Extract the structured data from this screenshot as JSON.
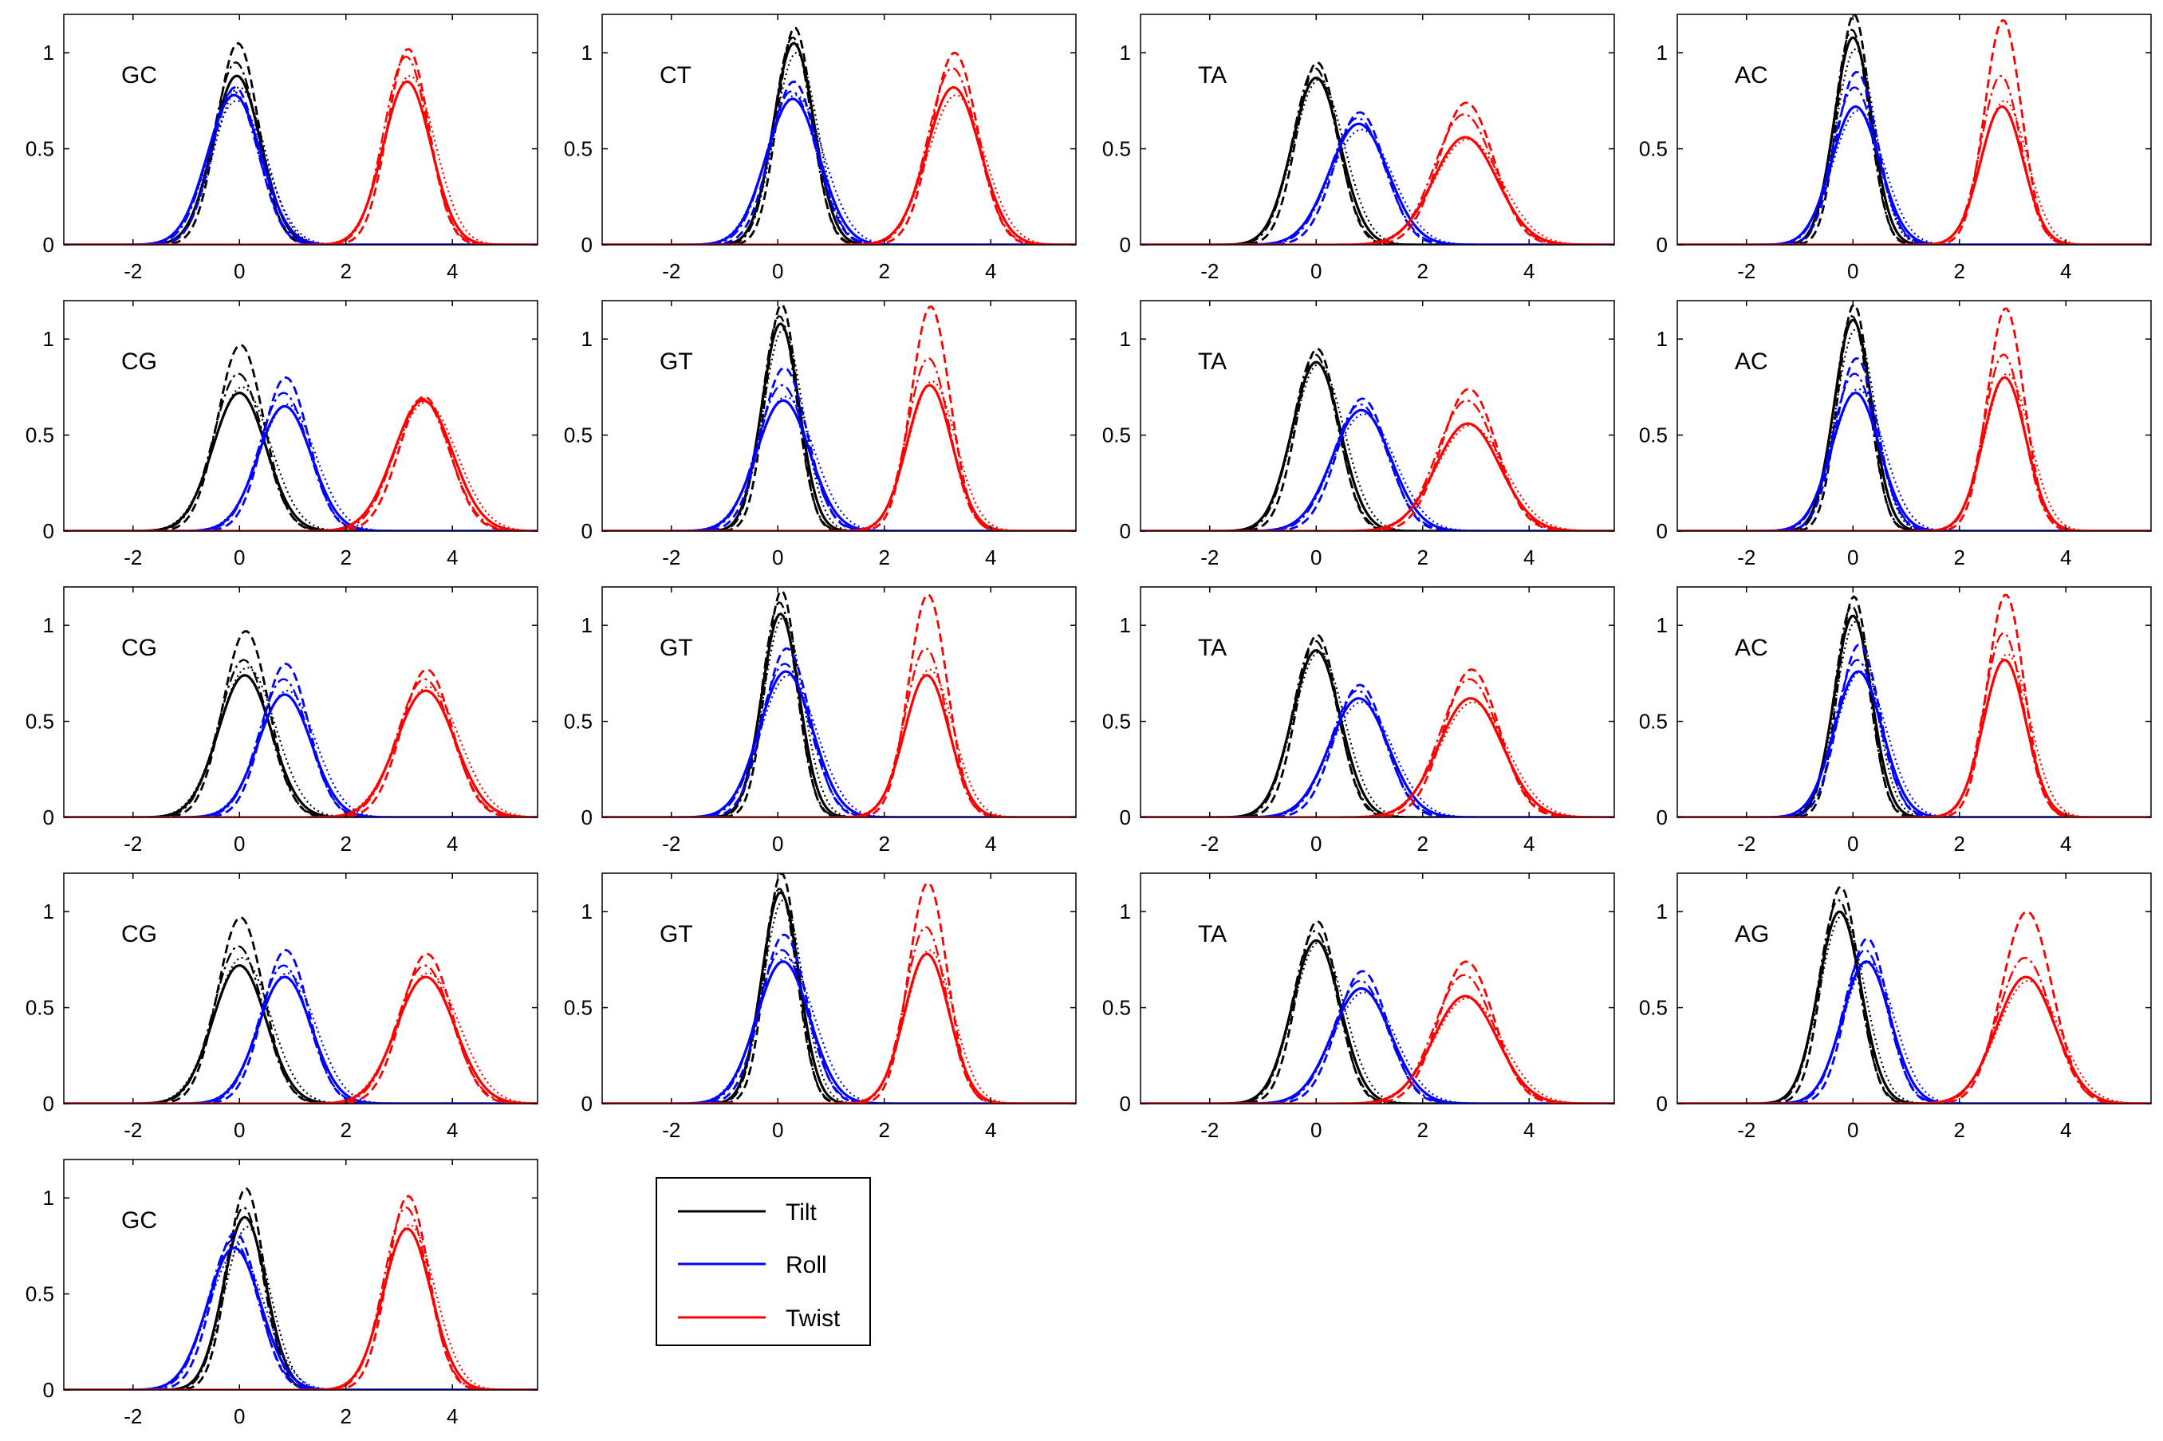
{
  "legend": {
    "entries": [
      {
        "label": "Tilt",
        "color": "#000000"
      },
      {
        "label": "Roll",
        "color": "#0000ff"
      },
      {
        "label": "Twist",
        "color": "#ff0000"
      }
    ]
  },
  "chart_data": [
    {
      "type": "line",
      "label": "GC",
      "xlim": [
        -3.3,
        5.6
      ],
      "ylim": [
        0,
        1.2
      ],
      "xticks": [
        -2,
        0,
        2,
        4
      ],
      "yticks": [
        0,
        0.5,
        1
      ],
      "grid": false,
      "series": [
        {
          "name": "Tilt",
          "mu": -0.05,
          "sd": 0.45,
          "peaks": [
            0.88,
            1.05,
            0.95,
            0.82
          ]
        },
        {
          "name": "Roll",
          "mu": -0.1,
          "sd": 0.5,
          "peaks": [
            0.78,
            0.82,
            0.8,
            0.75
          ]
        },
        {
          "name": "Twist",
          "mu": 3.15,
          "sd": 0.45,
          "peaks": [
            0.85,
            1.02,
            0.98,
            0.88
          ]
        }
      ]
    },
    {
      "type": "line",
      "label": "CT",
      "xlim": [
        -3.3,
        5.6
      ],
      "ylim": [
        0,
        1.2
      ],
      "xticks": [
        -2,
        0,
        2,
        4
      ],
      "yticks": [
        0,
        0.5,
        1
      ],
      "grid": false,
      "series": [
        {
          "name": "Tilt",
          "mu": 0.3,
          "sd": 0.38,
          "peaks": [
            1.05,
            1.13,
            1.08,
            1.0
          ]
        },
        {
          "name": "Roll",
          "mu": 0.28,
          "sd": 0.5,
          "peaks": [
            0.76,
            0.85,
            0.8,
            0.78
          ]
        },
        {
          "name": "Twist",
          "mu": 3.3,
          "sd": 0.5,
          "peaks": [
            0.82,
            1.0,
            0.92,
            0.78
          ]
        }
      ]
    },
    {
      "type": "line",
      "label": "TA",
      "xlim": [
        -3.3,
        5.6
      ],
      "ylim": [
        0,
        1.2
      ],
      "xticks": [
        -2,
        0,
        2,
        4
      ],
      "yticks": [
        0,
        0.5,
        1
      ],
      "grid": false,
      "series": [
        {
          "name": "Tilt",
          "mu": 0.0,
          "sd": 0.45,
          "peaks": [
            0.87,
            0.95,
            0.92,
            0.86
          ]
        },
        {
          "name": "Roll",
          "mu": 0.8,
          "sd": 0.55,
          "peaks": [
            0.63,
            0.69,
            0.66,
            0.6
          ]
        },
        {
          "name": "Twist",
          "mu": 2.8,
          "sd": 0.6,
          "peaks": [
            0.56,
            0.74,
            0.68,
            0.55
          ]
        }
      ]
    },
    {
      "type": "line",
      "label": "AC",
      "xlim": [
        -3.3,
        5.6
      ],
      "ylim": [
        0,
        1.2
      ],
      "xticks": [
        -2,
        0,
        2,
        4
      ],
      "yticks": [
        0,
        0.5,
        1
      ],
      "grid": false,
      "series": [
        {
          "name": "Tilt",
          "mu": 0.0,
          "sd": 0.35,
          "peaks": [
            1.08,
            1.2,
            1.12,
            1.02
          ]
        },
        {
          "name": "Roll",
          "mu": 0.05,
          "sd": 0.45,
          "peaks": [
            0.72,
            0.9,
            0.82,
            0.7
          ]
        },
        {
          "name": "Twist",
          "mu": 2.8,
          "sd": 0.4,
          "peaks": [
            0.72,
            1.17,
            0.88,
            0.75
          ]
        }
      ]
    },
    {
      "type": "line",
      "label": "CG",
      "xlim": [
        -3.3,
        5.6
      ],
      "ylim": [
        0,
        1.2
      ],
      "xticks": [
        -2,
        0,
        2,
        4
      ],
      "yticks": [
        0,
        0.5,
        1
      ],
      "grid": false,
      "series": [
        {
          "name": "Tilt",
          "mu": 0.0,
          "sd": 0.5,
          "peaks": [
            0.72,
            0.97,
            0.82,
            0.75
          ]
        },
        {
          "name": "Roll",
          "mu": 0.85,
          "sd": 0.5,
          "peaks": [
            0.65,
            0.8,
            0.72,
            0.66
          ]
        },
        {
          "name": "Twist",
          "mu": 3.45,
          "sd": 0.55,
          "peaks": [
            0.68,
            0.7,
            0.69,
            0.67
          ]
        }
      ]
    },
    {
      "type": "line",
      "label": "GT",
      "xlim": [
        -3.3,
        5.6
      ],
      "ylim": [
        0,
        1.2
      ],
      "xticks": [
        -2,
        0,
        2,
        4
      ],
      "yticks": [
        0,
        0.5,
        1
      ],
      "grid": false,
      "series": [
        {
          "name": "Tilt",
          "mu": 0.05,
          "sd": 0.35,
          "peaks": [
            1.08,
            1.18,
            1.12,
            1.05
          ]
        },
        {
          "name": "Roll",
          "mu": 0.1,
          "sd": 0.5,
          "peaks": [
            0.68,
            0.85,
            0.76,
            0.7
          ]
        },
        {
          "name": "Twist",
          "mu": 2.85,
          "sd": 0.42,
          "peaks": [
            0.76,
            1.17,
            0.9,
            0.78
          ]
        }
      ]
    },
    {
      "type": "line",
      "label": "TA",
      "xlim": [
        -3.3,
        5.6
      ],
      "ylim": [
        0,
        1.2
      ],
      "xticks": [
        -2,
        0,
        2,
        4
      ],
      "yticks": [
        0,
        0.5,
        1
      ],
      "grid": false,
      "series": [
        {
          "name": "Tilt",
          "mu": 0.0,
          "sd": 0.45,
          "peaks": [
            0.88,
            0.95,
            0.92,
            0.87
          ]
        },
        {
          "name": "Roll",
          "mu": 0.85,
          "sd": 0.55,
          "peaks": [
            0.63,
            0.69,
            0.66,
            0.61
          ]
        },
        {
          "name": "Twist",
          "mu": 2.85,
          "sd": 0.6,
          "peaks": [
            0.56,
            0.74,
            0.68,
            0.55
          ]
        }
      ]
    },
    {
      "type": "line",
      "label": "AC",
      "xlim": [
        -3.3,
        5.6
      ],
      "ylim": [
        0,
        1.2
      ],
      "xticks": [
        -2,
        0,
        2,
        4
      ],
      "yticks": [
        0,
        0.5,
        1
      ],
      "grid": false,
      "series": [
        {
          "name": "Tilt",
          "mu": 0.0,
          "sd": 0.35,
          "peaks": [
            1.1,
            1.18,
            1.12,
            1.05
          ]
        },
        {
          "name": "Roll",
          "mu": 0.05,
          "sd": 0.45,
          "peaks": [
            0.72,
            0.9,
            0.82,
            0.74
          ]
        },
        {
          "name": "Twist",
          "mu": 2.85,
          "sd": 0.4,
          "peaks": [
            0.8,
            1.16,
            0.92,
            0.82
          ]
        }
      ]
    },
    {
      "type": "line",
      "label": "CG",
      "xlim": [
        -3.3,
        5.6
      ],
      "ylim": [
        0,
        1.2
      ],
      "xticks": [
        -2,
        0,
        2,
        4
      ],
      "yticks": [
        0,
        0.5,
        1
      ],
      "grid": false,
      "series": [
        {
          "name": "Tilt",
          "mu": 0.1,
          "sd": 0.5,
          "peaks": [
            0.74,
            0.97,
            0.82,
            0.78
          ]
        },
        {
          "name": "Roll",
          "mu": 0.85,
          "sd": 0.5,
          "peaks": [
            0.64,
            0.8,
            0.72,
            0.66
          ]
        },
        {
          "name": "Twist",
          "mu": 3.5,
          "sd": 0.55,
          "peaks": [
            0.66,
            0.77,
            0.72,
            0.68
          ]
        }
      ]
    },
    {
      "type": "line",
      "label": "GT",
      "xlim": [
        -3.3,
        5.6
      ],
      "ylim": [
        0,
        1.2
      ],
      "xticks": [
        -2,
        0,
        2,
        4
      ],
      "yticks": [
        0,
        0.5,
        1
      ],
      "grid": false,
      "series": [
        {
          "name": "Tilt",
          "mu": 0.05,
          "sd": 0.35,
          "peaks": [
            1.06,
            1.18,
            1.12,
            1.04
          ]
        },
        {
          "name": "Roll",
          "mu": 0.15,
          "sd": 0.5,
          "peaks": [
            0.76,
            0.88,
            0.8,
            0.74
          ]
        },
        {
          "name": "Twist",
          "mu": 2.8,
          "sd": 0.42,
          "peaks": [
            0.74,
            1.16,
            0.88,
            0.77
          ]
        }
      ]
    },
    {
      "type": "line",
      "label": "TA",
      "xlim": [
        -3.3,
        5.6
      ],
      "ylim": [
        0,
        1.2
      ],
      "xticks": [
        -2,
        0,
        2,
        4
      ],
      "yticks": [
        0,
        0.5,
        1
      ],
      "grid": false,
      "series": [
        {
          "name": "Tilt",
          "mu": 0.0,
          "sd": 0.45,
          "peaks": [
            0.87,
            0.95,
            0.92,
            0.86
          ]
        },
        {
          "name": "Roll",
          "mu": 0.8,
          "sd": 0.55,
          "peaks": [
            0.62,
            0.69,
            0.66,
            0.6
          ]
        },
        {
          "name": "Twist",
          "mu": 2.9,
          "sd": 0.6,
          "peaks": [
            0.62,
            0.77,
            0.72,
            0.6
          ]
        }
      ]
    },
    {
      "type": "line",
      "label": "AC",
      "xlim": [
        -3.3,
        5.6
      ],
      "ylim": [
        0,
        1.2
      ],
      "xticks": [
        -2,
        0,
        2,
        4
      ],
      "yticks": [
        0,
        0.5,
        1
      ],
      "grid": false,
      "series": [
        {
          "name": "Tilt",
          "mu": 0.0,
          "sd": 0.35,
          "peaks": [
            1.05,
            1.15,
            1.1,
            1.02
          ]
        },
        {
          "name": "Roll",
          "mu": 0.1,
          "sd": 0.45,
          "peaks": [
            0.76,
            0.9,
            0.82,
            0.76
          ]
        },
        {
          "name": "Twist",
          "mu": 2.85,
          "sd": 0.4,
          "peaks": [
            0.82,
            1.16,
            0.96,
            0.85
          ]
        }
      ]
    },
    {
      "type": "line",
      "label": "CG",
      "xlim": [
        -3.3,
        5.6
      ],
      "ylim": [
        0,
        1.2
      ],
      "xticks": [
        -2,
        0,
        2,
        4
      ],
      "yticks": [
        0,
        0.5,
        1
      ],
      "grid": false,
      "series": [
        {
          "name": "Tilt",
          "mu": 0.0,
          "sd": 0.5,
          "peaks": [
            0.72,
            0.97,
            0.82,
            0.76
          ]
        },
        {
          "name": "Roll",
          "mu": 0.85,
          "sd": 0.5,
          "peaks": [
            0.66,
            0.8,
            0.72,
            0.68
          ]
        },
        {
          "name": "Twist",
          "mu": 3.5,
          "sd": 0.55,
          "peaks": [
            0.66,
            0.78,
            0.72,
            0.68
          ]
        }
      ]
    },
    {
      "type": "line",
      "label": "GT",
      "xlim": [
        -3.3,
        5.6
      ],
      "ylim": [
        0,
        1.2
      ],
      "xticks": [
        -2,
        0,
        2,
        4
      ],
      "yticks": [
        0,
        0.5,
        1
      ],
      "grid": false,
      "series": [
        {
          "name": "Tilt",
          "mu": 0.05,
          "sd": 0.35,
          "peaks": [
            1.1,
            1.2,
            1.12,
            1.06
          ]
        },
        {
          "name": "Roll",
          "mu": 0.1,
          "sd": 0.5,
          "peaks": [
            0.74,
            0.88,
            0.8,
            0.76
          ]
        },
        {
          "name": "Twist",
          "mu": 2.8,
          "sd": 0.42,
          "peaks": [
            0.78,
            1.15,
            0.92,
            0.8
          ]
        }
      ]
    },
    {
      "type": "line",
      "label": "TA",
      "xlim": [
        -3.3,
        5.6
      ],
      "ylim": [
        0,
        1.2
      ],
      "xticks": [
        -2,
        0,
        2,
        4
      ],
      "yticks": [
        0,
        0.5,
        1
      ],
      "grid": false,
      "series": [
        {
          "name": "Tilt",
          "mu": 0.0,
          "sd": 0.45,
          "peaks": [
            0.85,
            0.95,
            0.9,
            0.84
          ]
        },
        {
          "name": "Roll",
          "mu": 0.85,
          "sd": 0.55,
          "peaks": [
            0.6,
            0.69,
            0.64,
            0.58
          ]
        },
        {
          "name": "Twist",
          "mu": 2.8,
          "sd": 0.6,
          "peaks": [
            0.56,
            0.74,
            0.67,
            0.55
          ]
        }
      ]
    },
    {
      "type": "line",
      "label": "AG",
      "xlim": [
        -3.3,
        5.6
      ],
      "ylim": [
        0,
        1.2
      ],
      "xticks": [
        -2,
        0,
        2,
        4
      ],
      "yticks": [
        0,
        0.5,
        1
      ],
      "grid": false,
      "series": [
        {
          "name": "Tilt",
          "mu": -0.25,
          "sd": 0.4,
          "peaks": [
            1.0,
            1.13,
            1.06,
            0.98
          ]
        },
        {
          "name": "Roll",
          "mu": 0.25,
          "sd": 0.45,
          "peaks": [
            0.74,
            0.86,
            0.8,
            0.74
          ]
        },
        {
          "name": "Twist",
          "mu": 3.25,
          "sd": 0.55,
          "peaks": [
            0.66,
            1.0,
            0.76,
            0.64
          ]
        }
      ]
    },
    {
      "type": "line",
      "label": "GC",
      "xlim": [
        -3.3,
        5.6
      ],
      "ylim": [
        0,
        1.2
      ],
      "xticks": [
        -2,
        0,
        2,
        4
      ],
      "yticks": [
        0,
        0.5,
        1
      ],
      "grid": false,
      "series": [
        {
          "name": "Tilt",
          "mu": 0.1,
          "sd": 0.4,
          "peaks": [
            0.9,
            1.05,
            0.95,
            0.85
          ]
        },
        {
          "name": "Roll",
          "mu": -0.1,
          "sd": 0.5,
          "peaks": [
            0.74,
            0.82,
            0.78,
            0.72
          ]
        },
        {
          "name": "Twist",
          "mu": 3.15,
          "sd": 0.45,
          "peaks": [
            0.84,
            1.01,
            0.95,
            0.86
          ]
        }
      ]
    }
  ]
}
